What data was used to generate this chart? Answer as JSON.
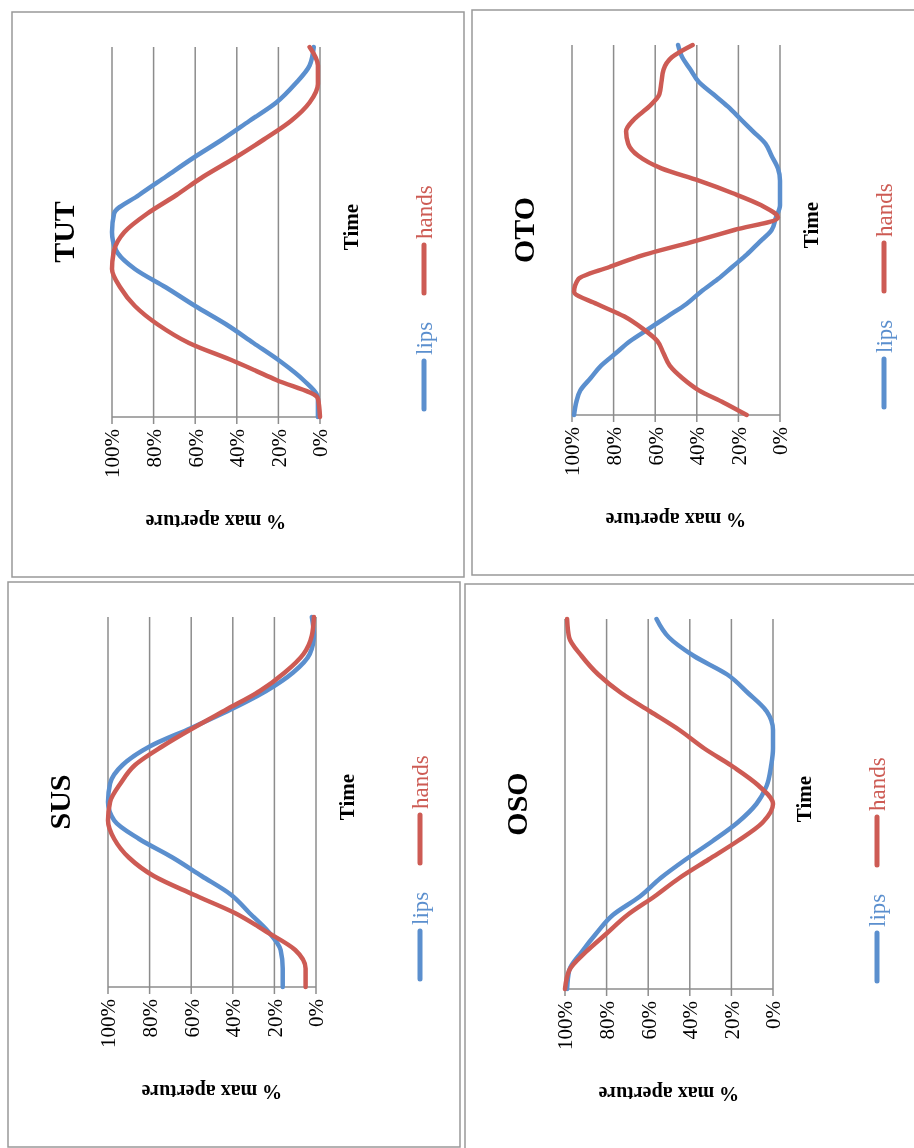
{
  "chart_data": [
    {
      "type": "line",
      "orientation": "horizontal",
      "title": "TUT",
      "xlabel": "% max aperture",
      "ylabel": "Time",
      "categories": [
        null,
        null,
        null,
        null,
        null,
        null,
        null,
        null,
        null,
        null,
        null,
        null,
        null,
        null,
        null,
        null,
        null,
        null,
        null,
        null,
        null
      ],
      "xlim": [
        100,
        0
      ],
      "xticks": [
        {
          "value": 100,
          "label": "100%"
        },
        {
          "value": 80,
          "label": "80%"
        },
        {
          "value": 60,
          "label": "60%"
        },
        {
          "value": 40,
          "label": "40%"
        },
        {
          "value": 20,
          "label": "20%"
        },
        {
          "value": 0,
          "label": "0%"
        }
      ],
      "grid": "x",
      "legend": "right",
      "series": [
        {
          "name": "lips",
          "color": "#5b8fce",
          "values": [
            3,
            5,
            12,
            21,
            34,
            47,
            61,
            74,
            87,
            99,
            100,
            98,
            89,
            74,
            60,
            45,
            32,
            19,
            8,
            1,
            1
          ]
        },
        {
          "name": "hands",
          "color": "#cd5b54",
          "values": [
            5,
            1,
            1,
            5,
            14,
            27,
            41,
            56,
            69,
            83,
            94,
            99,
            100,
            96,
            89,
            78,
            63,
            41,
            21,
            1,
            0
          ]
        }
      ]
    },
    {
      "type": "line",
      "orientation": "horizontal",
      "title": "OTO",
      "xlabel": "% max aperture",
      "ylabel": "Time",
      "categories": [
        null,
        null,
        null,
        null,
        null,
        null,
        null,
        null,
        null,
        null,
        null,
        null,
        null,
        null,
        null,
        null,
        null,
        null,
        null,
        null,
        null,
        null,
        null,
        null,
        null,
        null,
        null,
        null,
        null,
        null,
        null
      ],
      "xlim": [
        100,
        0
      ],
      "xticks": [
        {
          "value": 100,
          "label": "100%"
        },
        {
          "value": 80,
          "label": "80%"
        },
        {
          "value": 60,
          "label": "60%"
        },
        {
          "value": 40,
          "label": "40%"
        },
        {
          "value": 20,
          "label": "20%"
        },
        {
          "value": 0,
          "label": "0%"
        }
      ],
      "grid": "x",
      "legend": "right",
      "series": [
        {
          "name": "lips",
          "color": "#5b8fce",
          "values": [
            49,
            47,
            43,
            39,
            32,
            25,
            19,
            13,
            7,
            4,
            1,
            0,
            0,
            0,
            2,
            4,
            10,
            16,
            23,
            30,
            38,
            45,
            54,
            63,
            72,
            79,
            86,
            91,
            96,
            98,
            99
          ]
        },
        {
          "name": "hands",
          "color": "#cd5b54",
          "values": [
            42,
            52,
            56,
            57,
            58,
            63,
            70,
            74,
            73,
            68,
            57,
            39,
            23,
            9,
            1,
            22,
            43,
            65,
            82,
            97,
            99,
            88,
            75,
            66,
            59,
            56,
            53,
            47,
            39,
            27,
            16
          ]
        }
      ]
    },
    {
      "type": "line",
      "orientation": "horizontal",
      "title": "SUS",
      "xlabel": "% max aperture",
      "ylabel": "Time",
      "categories": [
        null,
        null,
        null,
        null,
        null,
        null,
        null,
        null,
        null,
        null,
        null,
        null,
        null,
        null,
        null,
        null,
        null,
        null,
        null,
        null,
        null
      ],
      "xlim": [
        100,
        0
      ],
      "xticks": [
        {
          "value": 100,
          "label": "100%"
        },
        {
          "value": 80,
          "label": "80%"
        },
        {
          "value": 60,
          "label": "60%"
        },
        {
          "value": 40,
          "label": "40%"
        },
        {
          "value": 20,
          "label": "20%"
        },
        {
          "value": 0,
          "label": "0%"
        }
      ],
      "grid": "x",
      "legend": "right",
      "series": [
        {
          "name": "lips",
          "color": "#5b8fce",
          "values": [
            2,
            1,
            3,
            11,
            24,
            41,
            60,
            80,
            93,
            99,
            100,
            97,
            85,
            69,
            55,
            41,
            32,
            23,
            17,
            16,
            16
          ]
        },
        {
          "name": "hands",
          "color": "#cd5b54",
          "values": [
            1,
            2,
            6,
            15,
            27,
            43,
            59,
            74,
            87,
            94,
            99,
            100,
            97,
            90,
            78,
            59,
            39,
            24,
            10,
            5,
            5
          ]
        }
      ]
    },
    {
      "type": "line",
      "orientation": "horizontal",
      "title": "OSO",
      "xlabel": "% max aperture",
      "ylabel": "Time",
      "categories": [
        null,
        null,
        null,
        null,
        null,
        null,
        null,
        null,
        null,
        null,
        null,
        null,
        null,
        null,
        null,
        null,
        null,
        null,
        null,
        null,
        null
      ],
      "xlim": [
        100,
        0
      ],
      "xticks": [
        {
          "value": 100,
          "label": "100%"
        },
        {
          "value": 80,
          "label": "80%"
        },
        {
          "value": 60,
          "label": "60%"
        },
        {
          "value": 40,
          "label": "40%"
        },
        {
          "value": 20,
          "label": "20%"
        },
        {
          "value": 0,
          "label": "0%"
        }
      ],
      "grid": "x",
      "legend": "right",
      "series": [
        {
          "name": "lips",
          "color": "#5b8fce",
          "values": [
            56,
            50,
            38,
            22,
            12,
            3,
            0,
            0,
            1,
            3,
            8,
            17,
            29,
            42,
            54,
            64,
            77,
            85,
            92,
            98,
            99
          ]
        },
        {
          "name": "hands",
          "color": "#cd5b54",
          "values": [
            99,
            98,
            92,
            84,
            73,
            59,
            45,
            33,
            19,
            7,
            0,
            5,
            17,
            31,
            45,
            57,
            70,
            80,
            90,
            98,
            100
          ]
        }
      ]
    }
  ]
}
